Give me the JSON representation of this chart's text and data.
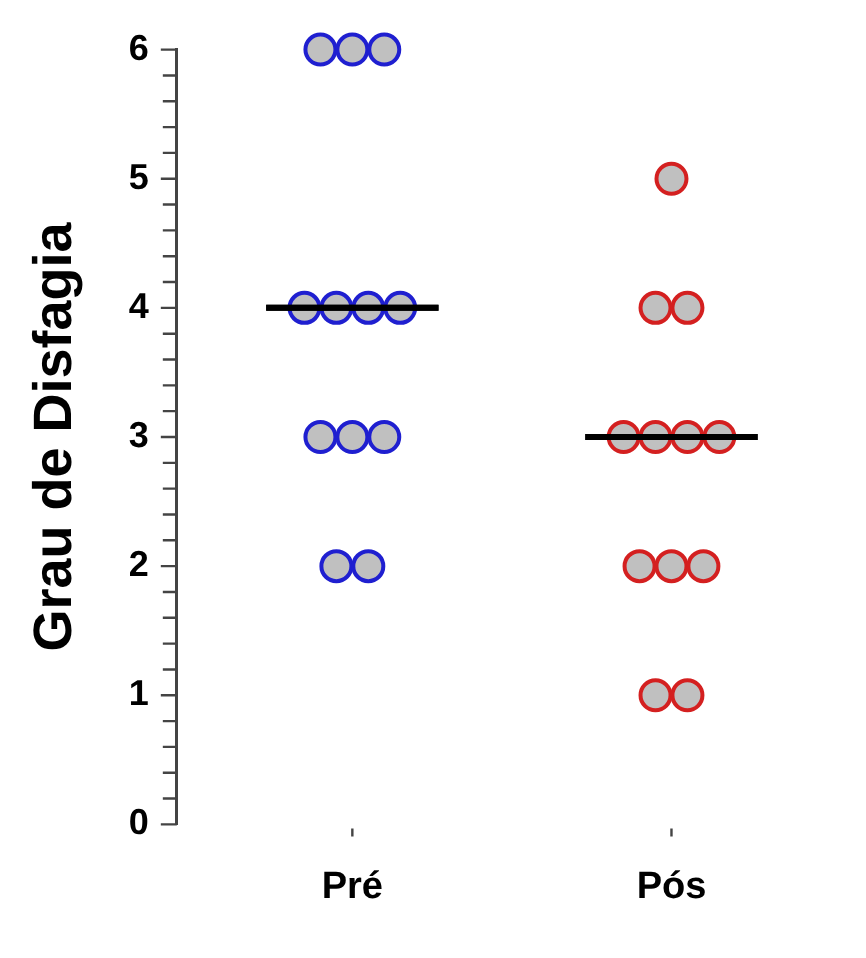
{
  "chart_data": {
    "type": "scatter",
    "ylabel": "Grau de Disfagia",
    "categories": [
      "Pré",
      "Pós"
    ],
    "series": [
      {
        "color": "#1f1fd0",
        "x": [
          "Pré",
          "Pré",
          "Pré",
          "Pré",
          "Pré",
          "Pré",
          "Pré",
          "Pré",
          "Pré",
          "Pré",
          "Pré",
          "Pré"
        ],
        "values": [
          6,
          6,
          6,
          4,
          4,
          4,
          4,
          3,
          3,
          3,
          2,
          2
        ]
      },
      {
        "color": "#d42020",
        "x": [
          "Pós",
          "Pós",
          "Pós",
          "Pós",
          "Pós",
          "Pós",
          "Pós",
          "Pós",
          "Pós",
          "Pós",
          "Pós",
          "Pós"
        ],
        "values": [
          5,
          4,
          4,
          3,
          3,
          3,
          3,
          2,
          2,
          2,
          1,
          1
        ]
      },
      {
        "type": "box",
        "color": "#000000",
        "boxes": [
          {
            "low": 4,
            "q1": 4,
            "median": 4,
            "q3": 4,
            "high": 4
          },
          {
            "low": 3,
            "q1": 3,
            "median": 3,
            "q3": 3,
            "high": 3
          }
        ]
      }
    ],
    "marker": "circle",
    "legend": false,
    "ylim": [
      0,
      6
    ],
    "yticks": [
      0,
      {
        "value": 0.2,
        "label": null
      },
      {
        "value": 0.4,
        "label": null
      },
      {
        "value": 0.6,
        "label": null
      },
      {
        "value": 0.8,
        "label": null
      },
      1,
      {
        "value": 1.2,
        "label": null
      },
      {
        "value": 1.4,
        "label": null
      },
      {
        "value": 1.6,
        "label": null
      },
      {
        "value": 1.8,
        "label": null
      },
      2,
      {
        "value": 2.2,
        "label": null
      },
      {
        "value": 2.4,
        "label": null
      },
      {
        "value": 2.6,
        "label": null
      },
      {
        "value": 2.8,
        "label": null
      },
      3,
      {
        "value": 3.2,
        "label": null
      },
      {
        "value": 3.4,
        "label": null
      },
      {
        "value": 3.6,
        "label": null
      },
      {
        "value": 3.8,
        "label": null
      },
      4,
      {
        "value": 4.2,
        "label": null
      },
      {
        "value": 4.4,
        "label": null
      },
      {
        "value": 4.6,
        "label": null
      },
      {
        "value": 4.8,
        "label": null
      },
      5,
      {
        "value": 5.2,
        "label": null
      },
      {
        "value": 5.4,
        "label": null
      },
      {
        "value": 5.6,
        "label": null
      },
      {
        "value": 5.8,
        "label": null
      },
      6
    ]
  }
}
